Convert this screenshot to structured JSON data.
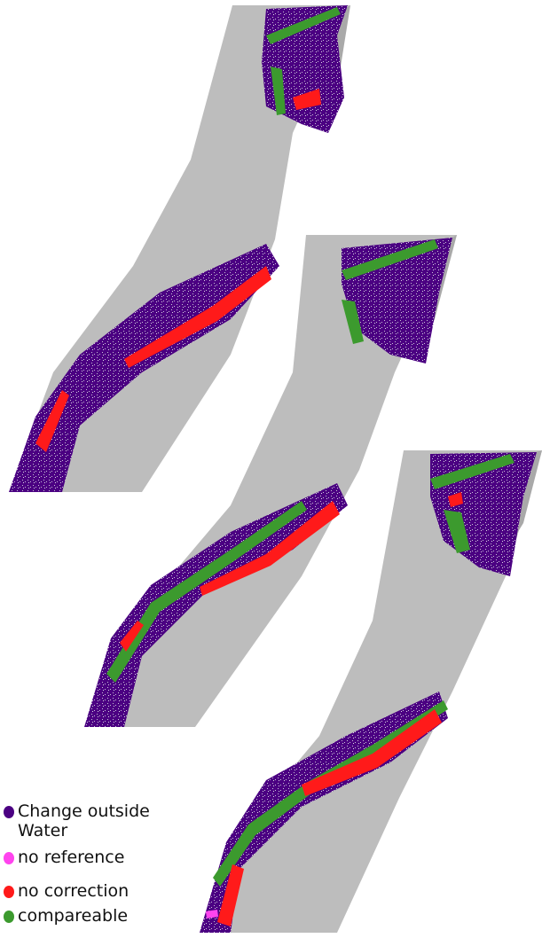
{
  "legend": {
    "items": [
      {
        "label": "Change outside Water",
        "color": "#4b0082"
      },
      {
        "label": "no reference",
        "color": "#ff44ee"
      },
      {
        "label": "no correction",
        "color": "#ff1a1a"
      },
      {
        "label": "compareable",
        "color": "#3c9a2e"
      }
    ]
  },
  "colors": {
    "river": "#bdbdbd",
    "river_dark": "#a9a9a9",
    "change_outside_water": "#4b0082",
    "no_reference": "#ff44ee",
    "no_correction": "#ff1a1a",
    "compareable": "#3c9a2e"
  },
  "panels": [
    {
      "name": "map-panel-1"
    },
    {
      "name": "map-panel-2"
    },
    {
      "name": "map-panel-3"
    },
    {
      "name": "map-panel-4"
    }
  ]
}
